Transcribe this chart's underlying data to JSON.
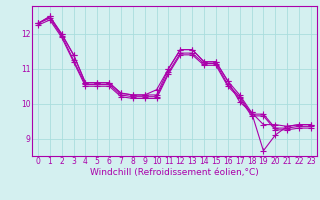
{
  "background_color": "#d4f0f0",
  "grid_color": "#aadddd",
  "line_color": "#aa00aa",
  "marker": "+",
  "markersize": 4,
  "linewidth": 0.8,
  "xlabel": "Windchill (Refroidissement éolien,°C)",
  "xlabel_fontsize": 6.5,
  "ylim": [
    8.5,
    12.8
  ],
  "xlim": [
    -0.5,
    23.5
  ],
  "yticks": [
    9,
    10,
    11,
    12
  ],
  "xticks": [
    0,
    1,
    2,
    3,
    4,
    5,
    6,
    7,
    8,
    9,
    10,
    11,
    12,
    13,
    14,
    15,
    16,
    17,
    18,
    19,
    20,
    21,
    22,
    23
  ],
  "tick_fontsize": 5.5,
  "series": [
    [
      12.3,
      12.5,
      12.0,
      11.4,
      10.6,
      10.6,
      10.6,
      10.3,
      10.25,
      10.25,
      10.25,
      11.0,
      11.55,
      11.55,
      11.2,
      11.2,
      10.65,
      10.05,
      9.75,
      8.65,
      9.1,
      9.35,
      9.4,
      9.4
    ],
    [
      12.3,
      12.5,
      12.0,
      11.4,
      10.6,
      10.6,
      10.6,
      10.3,
      10.25,
      10.25,
      10.4,
      11.0,
      11.55,
      11.55,
      11.2,
      11.2,
      10.65,
      10.25,
      9.75,
      9.4,
      9.4,
      9.35,
      9.4,
      9.4
    ],
    [
      12.3,
      12.45,
      11.95,
      11.25,
      10.55,
      10.55,
      10.55,
      10.25,
      10.2,
      10.2,
      10.2,
      10.9,
      11.45,
      11.45,
      11.15,
      11.15,
      10.55,
      10.2,
      9.7,
      9.7,
      9.3,
      9.3,
      9.35,
      9.35
    ],
    [
      12.25,
      12.4,
      11.9,
      11.2,
      10.5,
      10.5,
      10.5,
      10.2,
      10.15,
      10.15,
      10.15,
      10.85,
      11.4,
      11.4,
      11.1,
      11.1,
      10.5,
      10.15,
      9.65,
      9.65,
      9.25,
      9.25,
      9.3,
      9.3
    ]
  ]
}
